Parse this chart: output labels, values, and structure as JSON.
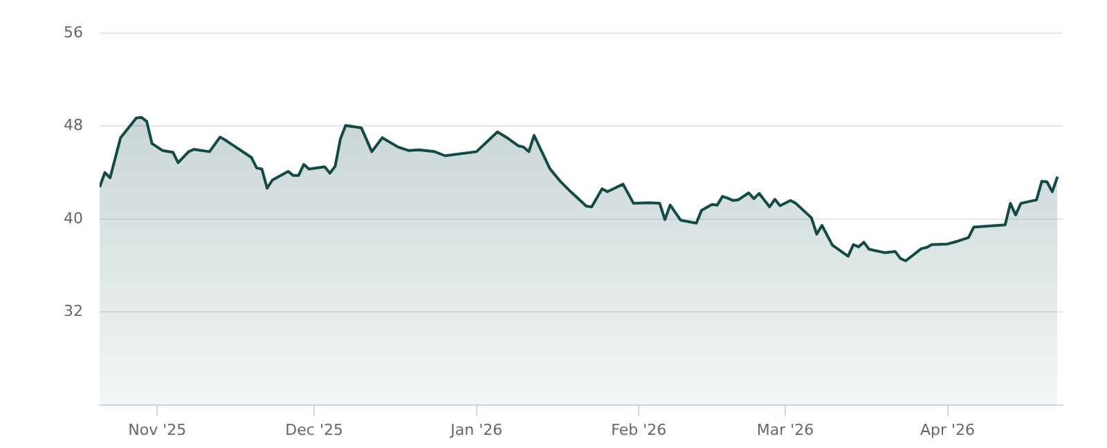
{
  "chart_data": {
    "type": "area",
    "x": [
      "2025-10-21",
      "2025-10-22",
      "2025-10-23",
      "2025-10-25",
      "2025-10-28",
      "2025-10-29",
      "2025-10-30",
      "2025-10-31",
      "2025-11-02",
      "2025-11-04",
      "2025-11-05",
      "2025-11-07",
      "2025-11-08",
      "2025-11-11",
      "2025-11-13",
      "2025-11-14",
      "2025-11-16",
      "2025-11-19",
      "2025-11-20",
      "2025-11-21",
      "2025-11-22",
      "2025-11-23",
      "2025-11-26",
      "2025-11-27",
      "2025-11-28",
      "2025-11-29",
      "2025-11-30",
      "2025-12-03",
      "2025-12-04",
      "2025-12-05",
      "2025-12-06",
      "2025-12-07",
      "2025-12-10",
      "2025-12-12",
      "2025-12-14",
      "2025-12-17",
      "2025-12-19",
      "2025-12-21",
      "2025-12-24",
      "2025-12-26",
      "2026-01-01",
      "2026-01-05",
      "2026-01-07",
      "2026-01-09",
      "2026-01-10",
      "2026-01-11",
      "2026-01-12",
      "2026-01-15",
      "2026-01-17",
      "2026-01-19",
      "2026-01-22",
      "2026-01-23",
      "2026-01-25",
      "2026-01-26",
      "2026-01-29",
      "2026-01-31",
      "2026-02-03",
      "2026-02-05",
      "2026-02-06",
      "2026-02-07",
      "2026-02-09",
      "2026-02-12",
      "2026-02-13",
      "2026-02-15",
      "2026-02-16",
      "2026-02-17",
      "2026-02-18",
      "2026-02-19",
      "2026-02-20",
      "2026-02-22",
      "2026-02-23",
      "2026-02-24",
      "2026-02-26",
      "2026-02-27",
      "2026-02-28",
      "2026-03-02",
      "2026-03-03",
      "2026-03-06",
      "2026-03-07",
      "2026-03-08",
      "2026-03-10",
      "2026-03-13",
      "2026-03-14",
      "2026-03-15",
      "2026-03-16",
      "2026-03-17",
      "2026-03-20",
      "2026-03-22",
      "2026-03-23",
      "2026-03-24",
      "2026-03-27",
      "2026-03-28",
      "2026-03-29",
      "2026-04-01",
      "2026-04-03",
      "2026-04-05",
      "2026-04-06",
      "2026-04-12",
      "2026-04-13",
      "2026-04-14",
      "2026-04-15",
      "2026-04-18",
      "2026-04-19",
      "2026-04-20",
      "2026-04-21",
      "2026-04-22"
    ],
    "series": [
      {
        "color": "#124a48",
        "values": [
          42.75,
          44.0,
          43.55,
          47.0,
          48.7,
          48.75,
          48.4,
          46.5,
          45.9,
          45.75,
          44.85,
          45.8,
          46.0,
          45.8,
          47.05,
          46.8,
          46.2,
          45.3,
          44.4,
          44.3,
          42.65,
          43.35,
          44.1,
          43.75,
          43.75,
          44.7,
          44.3,
          44.5,
          43.95,
          44.55,
          46.9,
          48.05,
          47.85,
          45.8,
          47.0,
          46.2,
          45.9,
          45.95,
          45.8,
          45.45,
          45.8,
          47.5,
          46.95,
          46.3,
          46.2,
          45.8,
          47.2,
          44.35,
          43.25,
          42.35,
          41.1,
          41.05,
          42.6,
          42.35,
          43.0,
          41.35,
          41.4,
          41.35,
          39.95,
          41.2,
          39.9,
          39.65,
          40.75,
          41.25,
          41.2,
          41.95,
          41.8,
          41.6,
          41.65,
          42.25,
          41.75,
          42.2,
          41.05,
          41.7,
          41.15,
          41.6,
          41.35,
          40.1,
          38.7,
          39.45,
          37.75,
          36.8,
          37.8,
          37.6,
          38.0,
          37.4,
          37.1,
          37.2,
          36.6,
          36.4,
          37.45,
          37.55,
          37.8,
          37.85,
          38.1,
          38.4,
          39.3,
          39.5,
          41.35,
          40.35,
          41.35,
          41.65,
          43.25,
          43.2,
          42.35,
          43.65
        ]
      }
    ],
    "xlim": [
      "2025-10-21",
      "2026-04-23"
    ],
    "xticks": [
      {
        "value": "2025-11-01",
        "label": "Nov '25"
      },
      {
        "value": "2025-12-01",
        "label": "Dec '25"
      },
      {
        "value": "2026-01-01",
        "label": "Jan '26"
      },
      {
        "value": "2026-02-01",
        "label": "Feb '26"
      },
      {
        "value": "2026-03-01",
        "label": "Mar '26"
      },
      {
        "value": "2026-04-01",
        "label": "Apr '26"
      }
    ],
    "ylim": [
      24,
      56
    ],
    "yticks": [
      32,
      40,
      48,
      56
    ],
    "grid": "y"
  }
}
